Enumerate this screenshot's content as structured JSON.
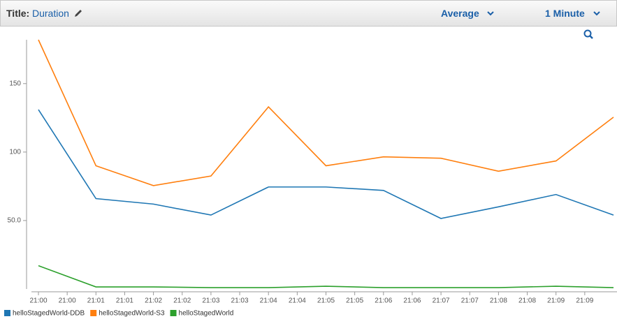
{
  "header": {
    "title_label": "Title:",
    "title": "Duration",
    "statistic": "Average",
    "period": "1 Minute"
  },
  "chart_data": {
    "type": "line",
    "categories": [
      "21:00",
      "21:01",
      "21:02",
      "21:03",
      "21:04",
      "21:05",
      "21:06",
      "21:07",
      "21:08",
      "21:09",
      null
    ],
    "xticks": [
      {
        "value": 0,
        "label": "21:00"
      },
      {
        "value": 0.5,
        "label": "21:00"
      },
      {
        "value": 1,
        "label": "21:01"
      },
      {
        "value": 1.5,
        "label": "21:01"
      },
      {
        "value": 2,
        "label": "21:02"
      },
      {
        "value": 2.5,
        "label": "21:02"
      },
      {
        "value": 3,
        "label": "21:03"
      },
      {
        "value": 3.5,
        "label": "21:03"
      },
      {
        "value": 4,
        "label": "21:04"
      },
      {
        "value": 4.5,
        "label": "21:04"
      },
      {
        "value": 5,
        "label": "21:05"
      },
      {
        "value": 5.5,
        "label": "21:05"
      },
      {
        "value": 6,
        "label": "21:06"
      },
      {
        "value": 6.5,
        "label": "21:06"
      },
      {
        "value": 7,
        "label": "21:07"
      },
      {
        "value": 7.5,
        "label": "21:07"
      },
      {
        "value": 8,
        "label": "21:08"
      },
      {
        "value": 8.5,
        "label": "21:08"
      },
      {
        "value": 9,
        "label": "21:09"
      },
      {
        "value": 9.5,
        "label": "21:09"
      }
    ],
    "ylim": [
      0,
      182
    ],
    "yticks": [
      {
        "value": 50,
        "label": "50.0"
      },
      100,
      150
    ],
    "series": [
      {
        "name": "helloStagedWorld-DDB",
        "color": "#1f77b4",
        "values": [
          131,
          66,
          62,
          54,
          74.5,
          74.5,
          72,
          51.5,
          60,
          69,
          54
        ]
      },
      {
        "name": "helloStagedWorld-S3",
        "color": "#ff7f0e",
        "values": [
          182,
          90,
          75.5,
          82.5,
          133,
          90,
          96.5,
          95.5,
          86,
          93.5,
          125.5
        ]
      },
      {
        "name": "helloStagedWorld",
        "color": "#2ca02c",
        "values": [
          17,
          1.5,
          1.5,
          1,
          1,
          2,
          1,
          1,
          1,
          2,
          1
        ]
      }
    ]
  }
}
